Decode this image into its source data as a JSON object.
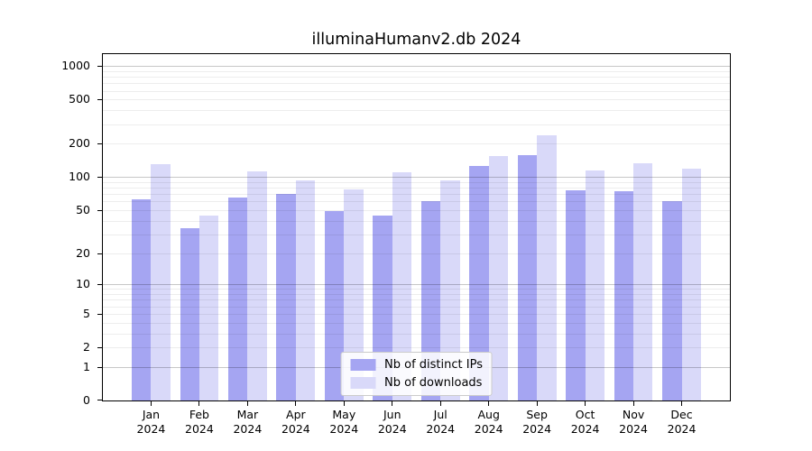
{
  "title": "illuminaHumanv2.db 2024",
  "chart_data": {
    "type": "bar",
    "title": "illuminaHumanv2.db 2024",
    "categories": [
      "Jan 2024",
      "Feb 2024",
      "Mar 2024",
      "Apr 2024",
      "May 2024",
      "Jun 2024",
      "Jul 2024",
      "Aug 2024",
      "Sep 2024",
      "Oct 2024",
      "Nov 2024",
      "Dec 2024"
    ],
    "series": [
      {
        "name": "Nb of distinct IPs",
        "key": "distinct-ips",
        "color": "#a5a5f2",
        "values": [
          63,
          34,
          65,
          70,
          49,
          45,
          61,
          126,
          159,
          76,
          74,
          60
        ]
      },
      {
        "name": "Nb of downloads",
        "key": "downloads",
        "color": "#d9d9f9",
        "values": [
          130,
          45,
          112,
          93,
          78,
          111,
          93,
          155,
          240,
          114,
          133,
          119
        ]
      }
    ],
    "xlabel": "",
    "ylabel": "",
    "yscale": "log1p",
    "yticks": [
      0,
      1,
      2,
      5,
      10,
      20,
      50,
      100,
      200,
      500,
      1000
    ],
    "ylim": [
      0,
      1280
    ],
    "grid": true,
    "legend_position": "lower center"
  },
  "colors": {
    "axis": "#000000",
    "grid_minor": "rgba(0,0,0,0.07)",
    "grid_major": "rgba(0,0,0,0.22)",
    "legend_border": "#cbcbcb",
    "legend_bg": "rgba(255,255,255,0.85)",
    "text": "#000000"
  }
}
